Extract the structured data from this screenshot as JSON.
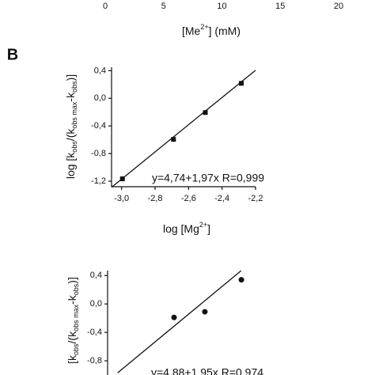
{
  "chart_data": [
    {
      "type": "axis",
      "xlim": [
        0,
        20
      ],
      "xticks": [
        0,
        5,
        10,
        15,
        20
      ],
      "xlabel": [
        {
          "text": "[Me"
        },
        {
          "text": "2+",
          "shift": "super"
        },
        {
          "text": "] (mM)"
        }
      ]
    },
    {
      "type": "scatter",
      "panel_label": "B",
      "xlim": [
        -3.06,
        -2.2
      ],
      "xticks": [
        {
          "value": -3.0,
          "label": "-3,0"
        },
        {
          "value": -2.8,
          "label": "-2,8"
        },
        {
          "value": -2.6,
          "label": "-2,6"
        },
        {
          "value": -2.4,
          "label": "-2,4"
        },
        {
          "value": -2.2,
          "label": "-2,2"
        }
      ],
      "ylim": [
        -1.28,
        0.45
      ],
      "yticks": [
        {
          "value": 0.4,
          "label": "0,4"
        },
        {
          "value": 0.0,
          "label": "0,0"
        },
        {
          "value": -0.4,
          "label": "-0,4"
        },
        {
          "value": -0.8,
          "label": "-0,8"
        },
        {
          "value": -1.2,
          "label": "-1,2"
        }
      ],
      "xlabel": [
        {
          "text": "log [Mg"
        },
        {
          "text": "2+",
          "shift": "super"
        },
        {
          "text": "]"
        }
      ],
      "ylabel": [
        {
          "text": "log [k"
        },
        {
          "text": "obs",
          "shift": "sub"
        },
        {
          "text": "/(k"
        },
        {
          "text": "obs max",
          "shift": "sub"
        },
        {
          "text": "-k"
        },
        {
          "text": "obs",
          "shift": "sub"
        },
        {
          "text": ")]"
        }
      ],
      "annotation": "y=4,74+1,97x R=0,999",
      "series": [
        {
          "mode": "markers",
          "marker": "square",
          "color": "#111111",
          "x": [
            -2.995,
            -2.69,
            -2.5,
            -2.285
          ],
          "values": [
            -1.166,
            -0.594,
            -0.206,
            0.217
          ]
        },
        {
          "mode": "line",
          "color": "#111111",
          "x": [
            -3.06,
            -2.2
          ],
          "values": [
            -1.288,
            0.406
          ]
        }
      ]
    },
    {
      "type": "scatter",
      "xlim": [
        -3.06,
        -2.2
      ],
      "ylim": [
        -1.0,
        0.47
      ],
      "yticks": [
        {
          "value": 0.4,
          "label": "0,4"
        },
        {
          "value": 0.0,
          "label": "0,0"
        },
        {
          "value": -0.4,
          "label": "-0,4"
        },
        {
          "value": -0.8,
          "label": "-0,8"
        }
      ],
      "ylabel": [
        {
          "text": "[k"
        },
        {
          "text": "obs",
          "shift": "sub"
        },
        {
          "text": "/(k"
        },
        {
          "text": "obs max",
          "shift": "sub"
        },
        {
          "text": "-k"
        },
        {
          "text": "obs",
          "shift": "sub"
        },
        {
          "text": ")]"
        }
      ],
      "annotation": "y=4,88+1,95x R=0,974",
      "series": [
        {
          "mode": "markers",
          "marker": "circle",
          "color": "#111111",
          "x": [
            -2.663,
            -2.479,
            -2.261
          ],
          "values": [
            -0.19,
            -0.11,
            0.34
          ]
        },
        {
          "mode": "line",
          "color": "#111111",
          "x": [
            -3.0,
            -2.263
          ],
          "values": [
            -0.97,
            0.467
          ]
        }
      ]
    }
  ]
}
